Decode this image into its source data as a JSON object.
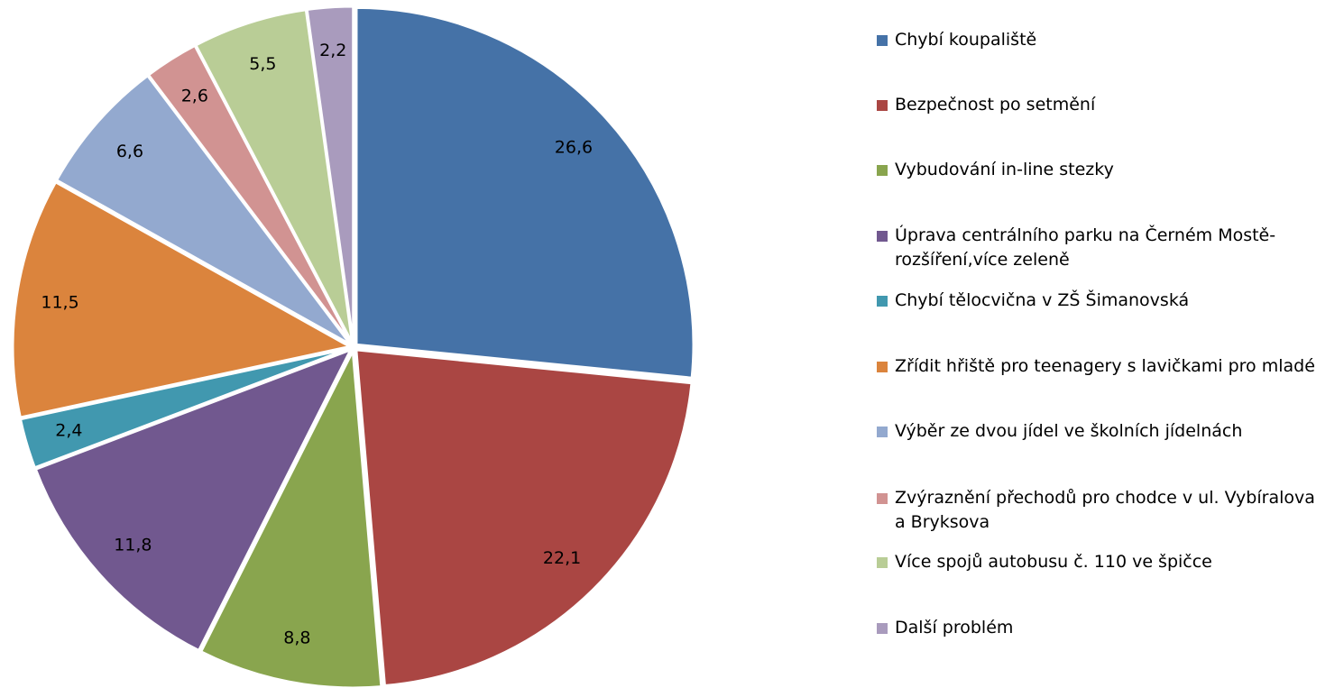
{
  "chart_data": {
    "type": "pie",
    "categories": [
      "Chybí koupaliště",
      "Bezpečnost po setmění",
      "Vybudování in-line stezky",
      "Úprava centrálního parku na Černém  Mostě-rozšíření,více zeleně",
      "Chybí tělocvična v ZŠ Šimanovská",
      "Zřídit hřiště pro teenagery s lavičkami pro mladé",
      "Výběr ze dvou jídel ve školních jídelnách",
      "Zvýraznění přechodů pro chodce v ul. Vybíralova a Bryksova",
      "Více spojů autobusu č. 110 ve špičce",
      "Další problém"
    ],
    "values": [
      26.6,
      22.1,
      8.8,
      11.8,
      2.4,
      11.5,
      6.6,
      2.6,
      5.5,
      2.2
    ],
    "value_labels": [
      "26,6",
      "22,1",
      "8,8",
      "11,8",
      "2,4",
      "11,5",
      "6,6",
      "2,6",
      "5,5",
      "2,2"
    ],
    "colors": [
      "#4572a7",
      "#aa4643",
      "#89a54e",
      "#71588f",
      "#4198af",
      "#db843d",
      "#93a9cf",
      "#d19392",
      "#b9cd96",
      "#a99bbd"
    ],
    "legend": "right"
  }
}
